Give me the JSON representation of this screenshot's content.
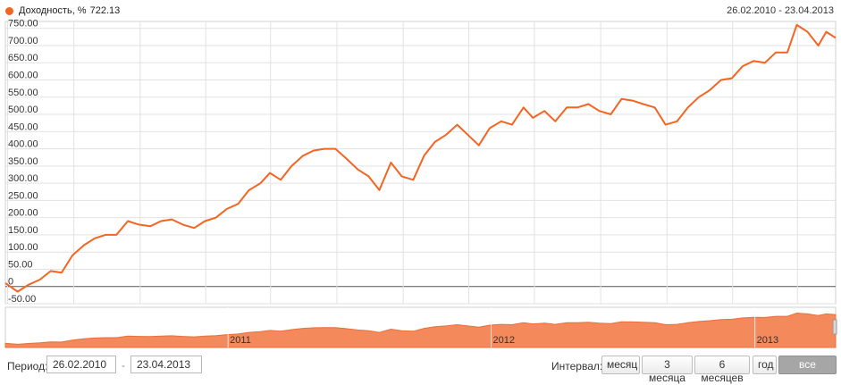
{
  "legend": {
    "label": "Доходность, %",
    "value": "722.13",
    "color": "#f26522"
  },
  "range_label": "26.02.2010 - 23.04.2013",
  "controls": {
    "period_label": "Период:",
    "from_value": "26.02.2010",
    "separator": "-",
    "to_value": "23.04.2013",
    "interval_label": "Интервал:",
    "buttons": [
      {
        "label": "месяц",
        "active": false
      },
      {
        "label": "3 месяца",
        "active": false
      },
      {
        "label": "6 месяцев",
        "active": false
      },
      {
        "label": "год",
        "active": false
      },
      {
        "label": "все время",
        "active": true
      }
    ]
  },
  "chart_data": {
    "type": "line",
    "series": [
      {
        "name": "Доходность, %",
        "color": "#f26522"
      }
    ],
    "ylim": [
      -50,
      770
    ],
    "yticks": [
      -50,
      0,
      50,
      100,
      150,
      200,
      250,
      300,
      350,
      400,
      450,
      500,
      550,
      600,
      650,
      700,
      750
    ],
    "ytick_labels": [
      "-50.00",
      "0",
      "50.00",
      "100.00",
      "150.00",
      "200.00",
      "250.00",
      "300.00",
      "350.00",
      "400.00",
      "450.00",
      "500.00",
      "550.00",
      "600.00",
      "650.00",
      "700.00",
      "750.00"
    ],
    "xlim": [
      "2010-02-26",
      "2013-04-23"
    ],
    "x": [
      "2010-02-26",
      "2010-03-15",
      "2010-03-30",
      "2010-04-15",
      "2010-04-30",
      "2010-05-15",
      "2010-05-30",
      "2010-06-15",
      "2010-06-30",
      "2010-07-15",
      "2010-07-30",
      "2010-08-15",
      "2010-08-30",
      "2010-09-15",
      "2010-09-30",
      "2010-10-15",
      "2010-10-30",
      "2010-11-15",
      "2010-11-30",
      "2010-12-15",
      "2010-12-30",
      "2011-01-15",
      "2011-01-30",
      "2011-02-15",
      "2011-02-28",
      "2011-03-15",
      "2011-03-30",
      "2011-04-15",
      "2011-04-30",
      "2011-05-15",
      "2011-05-30",
      "2011-06-15",
      "2011-06-30",
      "2011-07-15",
      "2011-07-30",
      "2011-08-15",
      "2011-08-30",
      "2011-09-15",
      "2011-09-30",
      "2011-10-15",
      "2011-10-30",
      "2011-11-15",
      "2011-11-30",
      "2011-12-15",
      "2011-12-30",
      "2012-01-15",
      "2012-01-30",
      "2012-02-15",
      "2012-02-28",
      "2012-03-15",
      "2012-03-30",
      "2012-04-15",
      "2012-04-30",
      "2012-05-15",
      "2012-05-30",
      "2012-06-15",
      "2012-06-30",
      "2012-07-15",
      "2012-07-30",
      "2012-08-15",
      "2012-08-30",
      "2012-09-15",
      "2012-09-30",
      "2012-10-15",
      "2012-10-30",
      "2012-11-15",
      "2012-11-30",
      "2012-12-15",
      "2012-12-30",
      "2013-01-15",
      "2013-01-30",
      "2013-02-15",
      "2013-02-28",
      "2013-03-15",
      "2013-03-30",
      "2013-04-10",
      "2013-04-23"
    ],
    "y": [
      10,
      -15,
      5,
      20,
      45,
      40,
      90,
      120,
      140,
      150,
      150,
      190,
      180,
      175,
      190,
      195,
      180,
      170,
      190,
      200,
      225,
      240,
      280,
      300,
      330,
      310,
      350,
      380,
      395,
      400,
      400,
      370,
      340,
      320,
      280,
      360,
      320,
      310,
      380,
      420,
      440,
      470,
      440,
      410,
      460,
      480,
      470,
      520,
      490,
      510,
      480,
      520,
      520,
      530,
      510,
      500,
      545,
      540,
      530,
      520,
      470,
      480,
      520,
      550,
      570,
      600,
      605,
      640,
      655,
      650,
      680,
      680,
      760,
      740,
      700,
      740,
      722.13
    ],
    "navigator_labels": [
      "2011",
      "2012",
      "2013"
    ],
    "grid": true,
    "legend_position": "top-left"
  }
}
